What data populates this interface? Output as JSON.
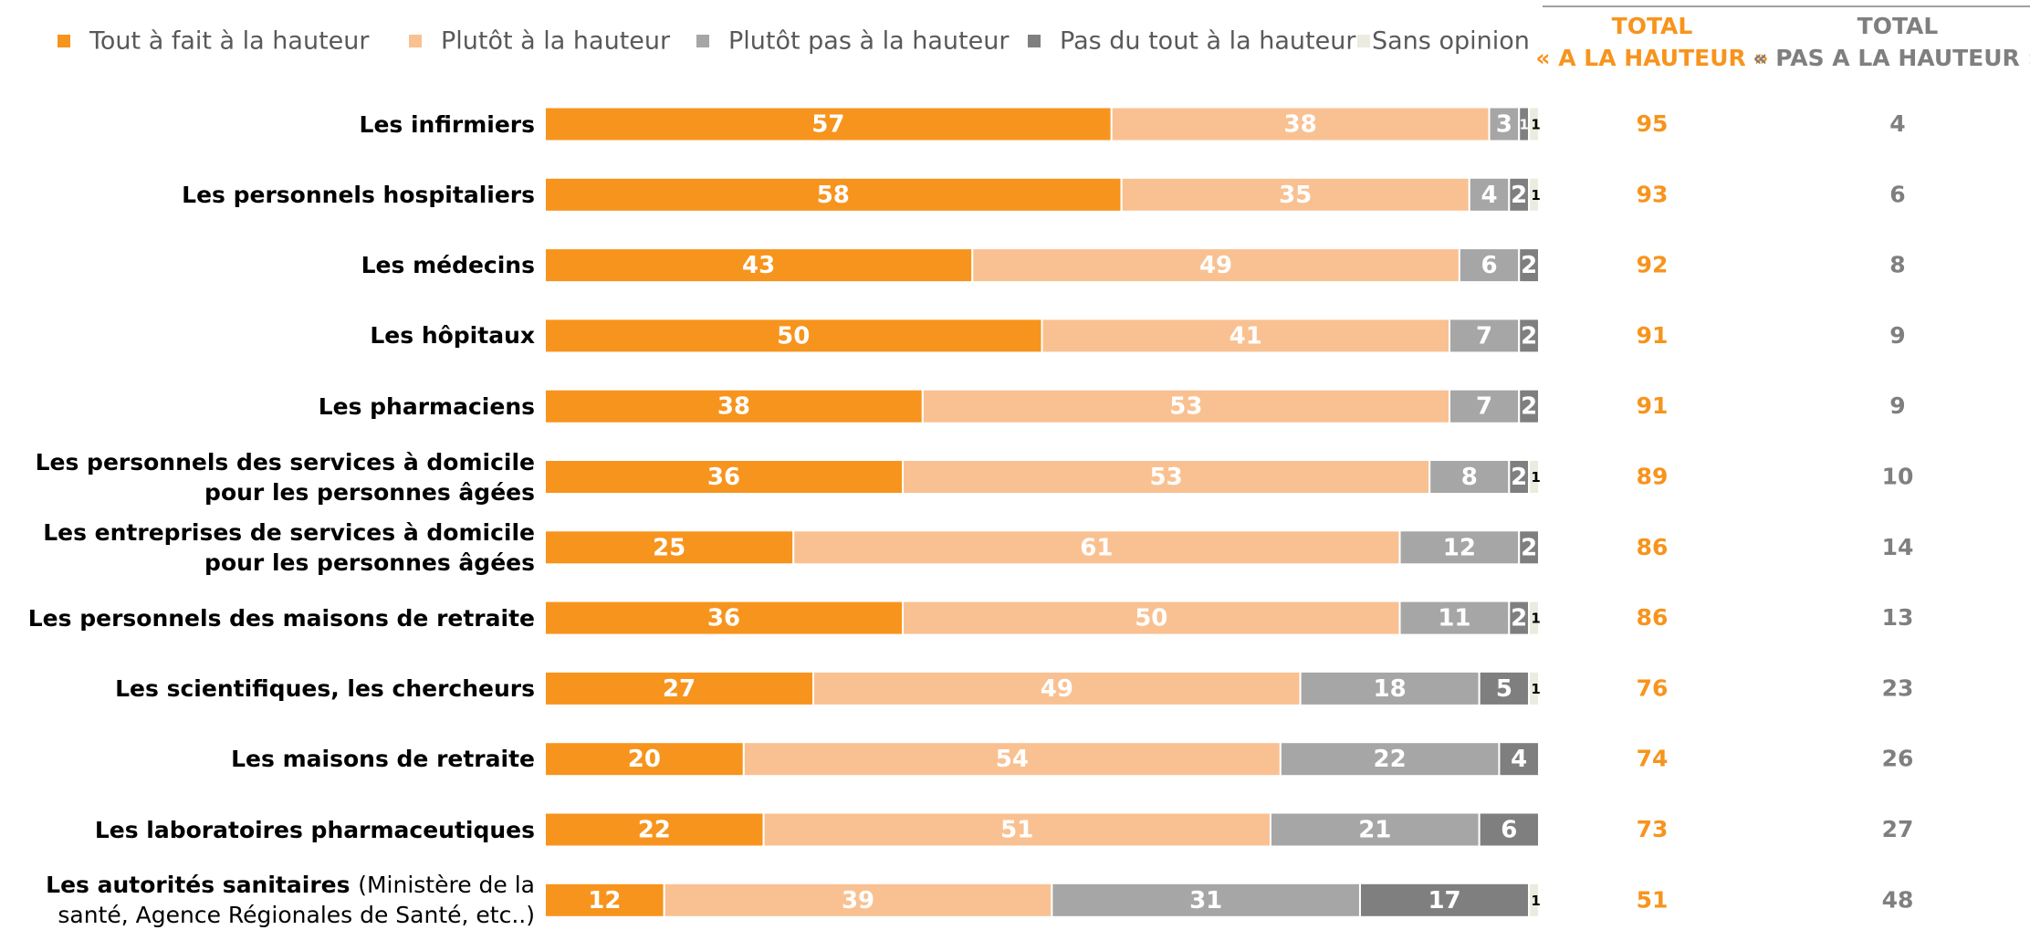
{
  "chart_data": {
    "type": "stacked-bar-horizontal",
    "categories": [
      "Les infirmiers",
      "Les personnels hospitaliers",
      "Les médecins",
      "Les hôpitaux",
      "Les pharmaciens",
      "Les personnels des services à domicile pour les personnes âgées",
      "Les entreprises de services à domicile pour les personnes âgées",
      "Les personnels des maisons de retraite",
      "Les scientifiques, les chercheurs",
      "Les maisons de retraite",
      "Les laboratoires pharmaceutiques",
      "Les autorités sanitaires"
    ],
    "category_notes": [
      null,
      null,
      null,
      null,
      null,
      null,
      null,
      null,
      null,
      null,
      null,
      "(Ministère de la santé, Agence Régionales de Santé, etc..)"
    ],
    "xlim": [
      0,
      100
    ],
    "series": [
      {
        "name": "Tout à fait à la hauteur",
        "color": "#f7941d",
        "values": [
          57,
          58,
          43,
          50,
          38,
          36,
          25,
          36,
          27,
          20,
          22,
          12
        ]
      },
      {
        "name": "Plutôt à la hauteur",
        "color": "#f9c192",
        "values": [
          38,
          35,
          49,
          41,
          53,
          53,
          61,
          50,
          49,
          54,
          51,
          39
        ]
      },
      {
        "name": "Plutôt pas à la hauteur",
        "color": "#a6a6a6",
        "values": [
          3,
          4,
          6,
          7,
          7,
          8,
          12,
          11,
          18,
          22,
          21,
          31
        ]
      },
      {
        "name": "Pas du tout à la hauteur",
        "color": "#7f7f7f",
        "values": [
          1,
          2,
          2,
          2,
          2,
          2,
          2,
          2,
          5,
          4,
          6,
          17
        ]
      },
      {
        "name": "Sans opinion",
        "color": "#ecebe0",
        "values": [
          1,
          1,
          null,
          null,
          null,
          1,
          null,
          1,
          1,
          null,
          null,
          1
        ]
      }
    ],
    "totals": [
      {
        "title": [
          "TOTAL",
          "« A LA HAUTEUR »"
        ],
        "color": "#f7941d",
        "values": [
          95,
          93,
          92,
          91,
          91,
          89,
          86,
          86,
          76,
          74,
          73,
          51
        ]
      },
      {
        "title": [
          "TOTAL",
          "« PAS A LA HAUTEUR »"
        ],
        "color": "#7f7f7f",
        "values": [
          4,
          6,
          8,
          9,
          9,
          10,
          14,
          13,
          23,
          26,
          27,
          48
        ]
      }
    ]
  }
}
